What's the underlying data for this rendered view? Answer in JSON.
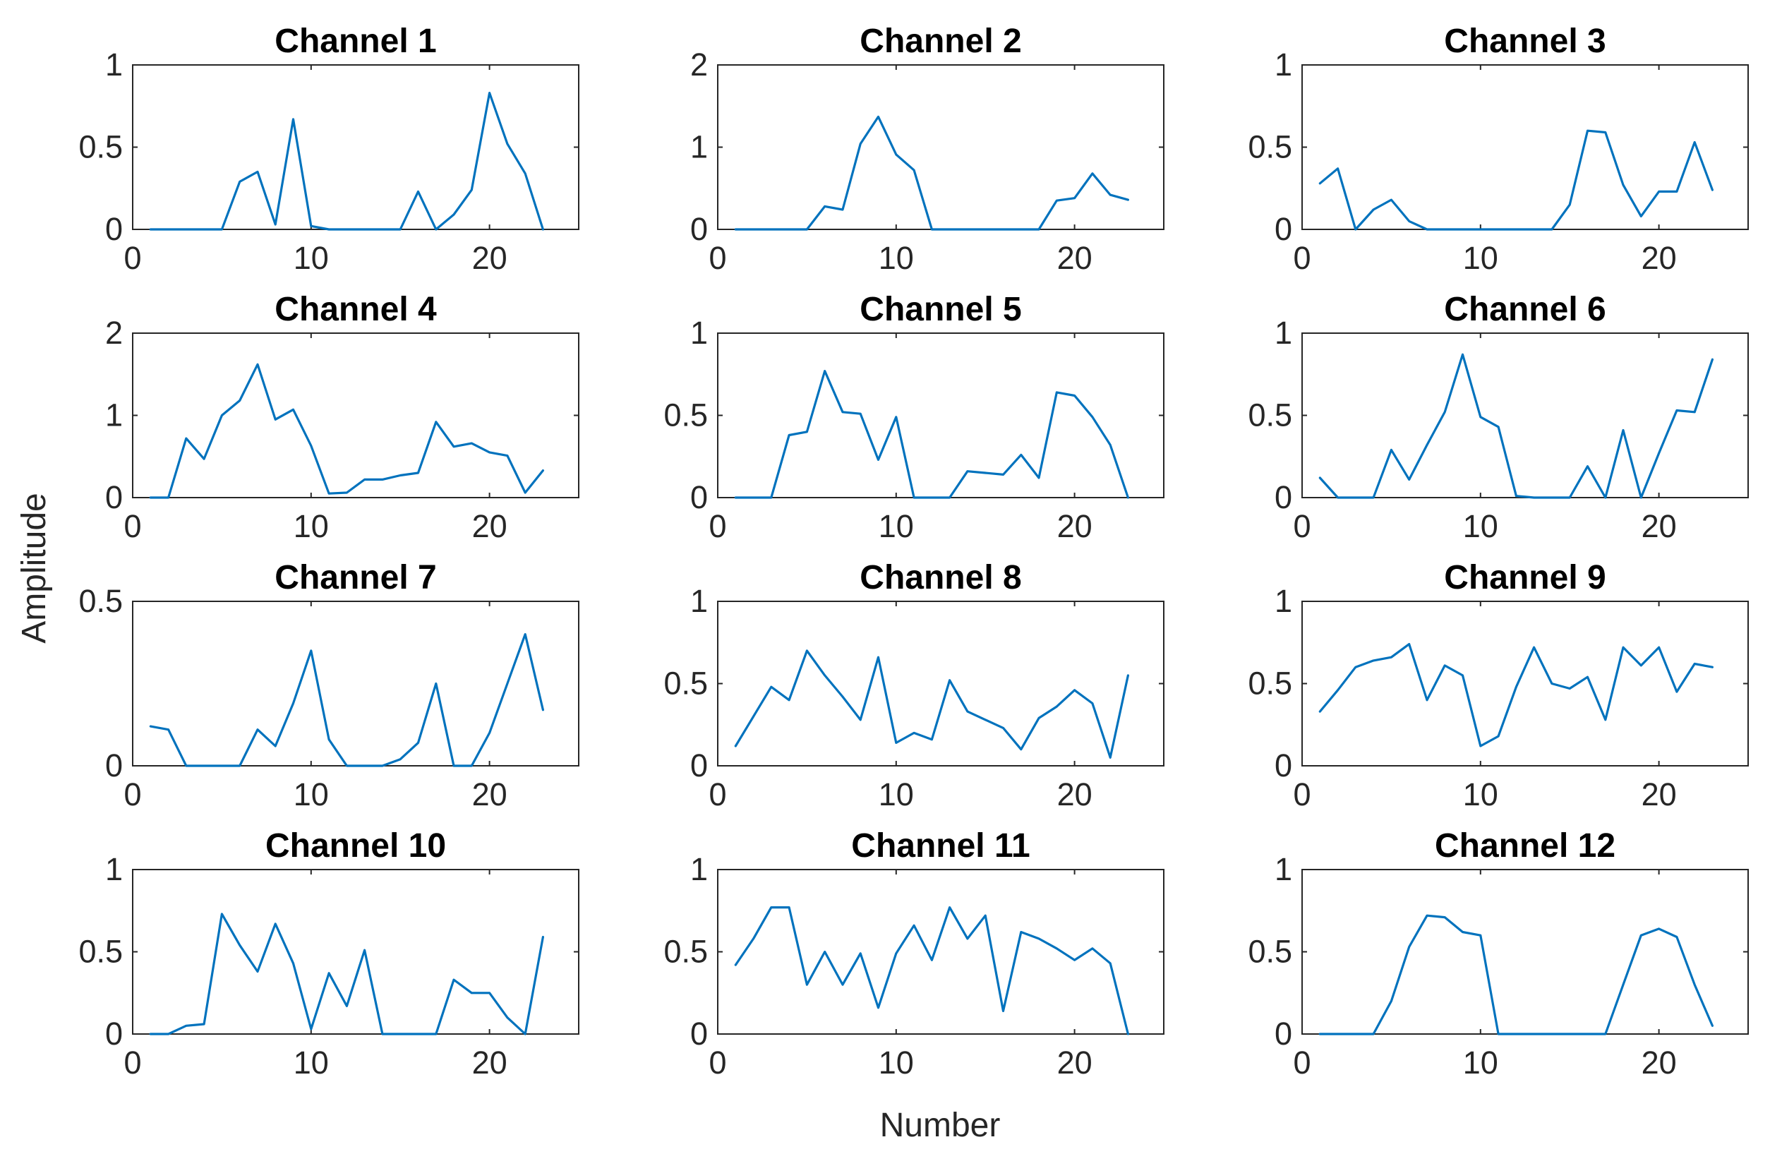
{
  "figure": {
    "ylabel": "Amplitude",
    "xlabel": "Number"
  },
  "colors": {
    "line": "#0072BD",
    "axes": "#262626",
    "background": "#FFFFFF"
  },
  "chart_data": [
    {
      "type": "line",
      "title": "Channel 1",
      "xlim": [
        0,
        25
      ],
      "ylim": [
        0,
        1
      ],
      "xticks": [
        0,
        10,
        20
      ],
      "yticks": [
        0,
        0.5,
        1
      ],
      "x": [
        1,
        2,
        3,
        4,
        5,
        6,
        7,
        8,
        9,
        10,
        11,
        12,
        13,
        14,
        15,
        16,
        17,
        18,
        19,
        20,
        21,
        22,
        23
      ],
      "series": [
        {
          "name": "Channel 1",
          "values": [
            0,
            0,
            0,
            0,
            0,
            0.29,
            0.35,
            0.03,
            0.67,
            0.02,
            0,
            0,
            0,
            0,
            0,
            0.23,
            0,
            0.09,
            0.24,
            0.83,
            0.52,
            0.34,
            0
          ]
        }
      ]
    },
    {
      "type": "line",
      "title": "Channel 2",
      "xlim": [
        0,
        25
      ],
      "ylim": [
        0,
        2
      ],
      "xticks": [
        0,
        10,
        20
      ],
      "yticks": [
        0,
        1,
        2
      ],
      "x": [
        1,
        2,
        3,
        4,
        5,
        6,
        7,
        8,
        9,
        10,
        11,
        12,
        13,
        14,
        15,
        16,
        17,
        18,
        19,
        20,
        21,
        22,
        23
      ],
      "series": [
        {
          "name": "Channel 2",
          "values": [
            0,
            0,
            0,
            0,
            0,
            0.28,
            0.24,
            1.04,
            1.37,
            0.91,
            0.72,
            0,
            0,
            0,
            0,
            0,
            0,
            0,
            0.35,
            0.38,
            0.68,
            0.42,
            0.36
          ]
        }
      ]
    },
    {
      "type": "line",
      "title": "Channel 3",
      "xlim": [
        0,
        25
      ],
      "ylim": [
        0,
        1
      ],
      "xticks": [
        0,
        10,
        20
      ],
      "yticks": [
        0,
        0.5,
        1
      ],
      "x": [
        1,
        2,
        3,
        4,
        5,
        6,
        7,
        8,
        9,
        10,
        11,
        12,
        13,
        14,
        15,
        16,
        17,
        18,
        19,
        20,
        21,
        22,
        23
      ],
      "series": [
        {
          "name": "Channel 3",
          "values": [
            0.28,
            0.37,
            0,
            0.12,
            0.18,
            0.05,
            0,
            0,
            0,
            0,
            0,
            0,
            0,
            0,
            0.15,
            0.6,
            0.59,
            0.27,
            0.08,
            0.23,
            0.23,
            0.53,
            0.24
          ]
        }
      ]
    },
    {
      "type": "line",
      "title": "Channel 4",
      "xlim": [
        0,
        25
      ],
      "ylim": [
        0,
        2
      ],
      "xticks": [
        0,
        10,
        20
      ],
      "yticks": [
        0,
        1,
        2
      ],
      "x": [
        1,
        2,
        3,
        4,
        5,
        6,
        7,
        8,
        9,
        10,
        11,
        12,
        13,
        14,
        15,
        16,
        17,
        18,
        19,
        20,
        21,
        22,
        23
      ],
      "series": [
        {
          "name": "Channel 4",
          "values": [
            0,
            0,
            0.72,
            0.47,
            1.0,
            1.18,
            1.62,
            0.95,
            1.07,
            0.63,
            0.05,
            0.06,
            0.22,
            0.22,
            0.27,
            0.3,
            0.92,
            0.62,
            0.66,
            0.55,
            0.51,
            0.06,
            0.33
          ]
        }
      ]
    },
    {
      "type": "line",
      "title": "Channel 5",
      "xlim": [
        0,
        25
      ],
      "ylim": [
        0,
        1
      ],
      "xticks": [
        0,
        10,
        20
      ],
      "yticks": [
        0,
        0.5,
        1
      ],
      "x": [
        1,
        2,
        3,
        4,
        5,
        6,
        7,
        8,
        9,
        10,
        11,
        12,
        13,
        14,
        15,
        16,
        17,
        18,
        19,
        20,
        21,
        22,
        23
      ],
      "series": [
        {
          "name": "Channel 5",
          "values": [
            0,
            0,
            0,
            0.38,
            0.4,
            0.77,
            0.52,
            0.51,
            0.23,
            0.49,
            0,
            0,
            0,
            0.16,
            0.15,
            0.14,
            0.26,
            0.12,
            0.64,
            0.62,
            0.49,
            0.32,
            0
          ]
        }
      ]
    },
    {
      "type": "line",
      "title": "Channel 6",
      "xlim": [
        0,
        25
      ],
      "ylim": [
        0,
        1
      ],
      "xticks": [
        0,
        10,
        20
      ],
      "yticks": [
        0,
        0.5,
        1
      ],
      "x": [
        1,
        2,
        3,
        4,
        5,
        6,
        7,
        8,
        9,
        10,
        11,
        12,
        13,
        14,
        15,
        16,
        17,
        18,
        19,
        20,
        21,
        22,
        23
      ],
      "series": [
        {
          "name": "Channel 6",
          "values": [
            0.12,
            0,
            0,
            0,
            0.29,
            0.11,
            0.32,
            0.52,
            0.87,
            0.49,
            0.43,
            0.01,
            0,
            0,
            0,
            0.19,
            0,
            0.41,
            0,
            0.27,
            0.53,
            0.52,
            0.84
          ]
        }
      ]
    },
    {
      "type": "line",
      "title": "Channel 7",
      "xlim": [
        0,
        25
      ],
      "ylim": [
        0,
        0.5
      ],
      "xticks": [
        0,
        10,
        20
      ],
      "yticks": [
        0,
        0.5
      ],
      "x": [
        1,
        2,
        3,
        4,
        5,
        6,
        7,
        8,
        9,
        10,
        11,
        12,
        13,
        14,
        15,
        16,
        17,
        18,
        19,
        20,
        21,
        22,
        23
      ],
      "series": [
        {
          "name": "Channel 7",
          "values": [
            0.12,
            0.11,
            0,
            0,
            0,
            0,
            0.11,
            0.06,
            0.19,
            0.35,
            0.08,
            0,
            0,
            0,
            0.02,
            0.07,
            0.25,
            0,
            0,
            0.1,
            0.25,
            0.4,
            0.17
          ]
        }
      ]
    },
    {
      "type": "line",
      "title": "Channel 8",
      "xlim": [
        0,
        25
      ],
      "ylim": [
        0,
        1
      ],
      "xticks": [
        0,
        10,
        20
      ],
      "yticks": [
        0,
        0.5,
        1
      ],
      "x": [
        1,
        2,
        3,
        4,
        5,
        6,
        7,
        8,
        9,
        10,
        11,
        12,
        13,
        14,
        15,
        16,
        17,
        18,
        19,
        20,
        21,
        22,
        23
      ],
      "series": [
        {
          "name": "Channel 8",
          "values": [
            0.12,
            0.3,
            0.48,
            0.4,
            0.7,
            0.55,
            0.42,
            0.28,
            0.66,
            0.14,
            0.2,
            0.16,
            0.52,
            0.33,
            0.28,
            0.23,
            0.1,
            0.29,
            0.36,
            0.46,
            0.38,
            0.05,
            0.55
          ]
        }
      ]
    },
    {
      "type": "line",
      "title": "Channel 9",
      "xlim": [
        0,
        25
      ],
      "ylim": [
        0,
        1
      ],
      "xticks": [
        0,
        10,
        20
      ],
      "yticks": [
        0,
        0.5,
        1
      ],
      "x": [
        1,
        2,
        3,
        4,
        5,
        6,
        7,
        8,
        9,
        10,
        11,
        12,
        13,
        14,
        15,
        16,
        17,
        18,
        19,
        20,
        21,
        22,
        23
      ],
      "series": [
        {
          "name": "Channel 9",
          "values": [
            0.33,
            0.46,
            0.6,
            0.64,
            0.66,
            0.74,
            0.4,
            0.61,
            0.55,
            0.12,
            0.18,
            0.48,
            0.72,
            0.5,
            0.47,
            0.54,
            0.28,
            0.72,
            0.61,
            0.72,
            0.45,
            0.62,
            0.6
          ]
        }
      ]
    },
    {
      "type": "line",
      "title": "Channel 10",
      "xlim": [
        0,
        25
      ],
      "ylim": [
        0,
        1
      ],
      "xticks": [
        0,
        10,
        20
      ],
      "yticks": [
        0,
        0.5,
        1
      ],
      "x": [
        1,
        2,
        3,
        4,
        5,
        6,
        7,
        8,
        9,
        10,
        11,
        12,
        13,
        14,
        15,
        16,
        17,
        18,
        19,
        20,
        21,
        22,
        23
      ],
      "series": [
        {
          "name": "Channel 10",
          "values": [
            0,
            0,
            0.05,
            0.06,
            0.73,
            0.54,
            0.38,
            0.67,
            0.43,
            0.03,
            0.37,
            0.17,
            0.51,
            0,
            0,
            0,
            0,
            0.33,
            0.25,
            0.25,
            0.1,
            0,
            0.59
          ]
        }
      ]
    },
    {
      "type": "line",
      "title": "Channel 11",
      "xlim": [
        0,
        25
      ],
      "ylim": [
        0,
        1
      ],
      "xticks": [
        0,
        10,
        20
      ],
      "yticks": [
        0,
        0.5,
        1
      ],
      "x": [
        1,
        2,
        3,
        4,
        5,
        6,
        7,
        8,
        9,
        10,
        11,
        12,
        13,
        14,
        15,
        16,
        17,
        18,
        19,
        20,
        21,
        22,
        23
      ],
      "series": [
        {
          "name": "Channel 11",
          "values": [
            0.42,
            0.58,
            0.77,
            0.77,
            0.3,
            0.5,
            0.3,
            0.49,
            0.16,
            0.49,
            0.66,
            0.45,
            0.77,
            0.58,
            0.72,
            0.14,
            0.62,
            0.58,
            0.52,
            0.45,
            0.52,
            0.43,
            0
          ]
        }
      ]
    },
    {
      "type": "line",
      "title": "Channel 12",
      "xlim": [
        0,
        25
      ],
      "ylim": [
        0,
        1
      ],
      "xticks": [
        0,
        10,
        20
      ],
      "yticks": [
        0,
        0.5,
        1
      ],
      "x": [
        1,
        2,
        3,
        4,
        5,
        6,
        7,
        8,
        9,
        10,
        11,
        12,
        13,
        14,
        15,
        16,
        17,
        18,
        19,
        20,
        21,
        22,
        23
      ],
      "series": [
        {
          "name": "Channel 12",
          "values": [
            0,
            0,
            0,
            0,
            0.2,
            0.53,
            0.72,
            0.71,
            0.62,
            0.6,
            0,
            0,
            0,
            0,
            0,
            0,
            0,
            0.3,
            0.6,
            0.64,
            0.59,
            0.3,
            0.05
          ]
        }
      ]
    }
  ]
}
